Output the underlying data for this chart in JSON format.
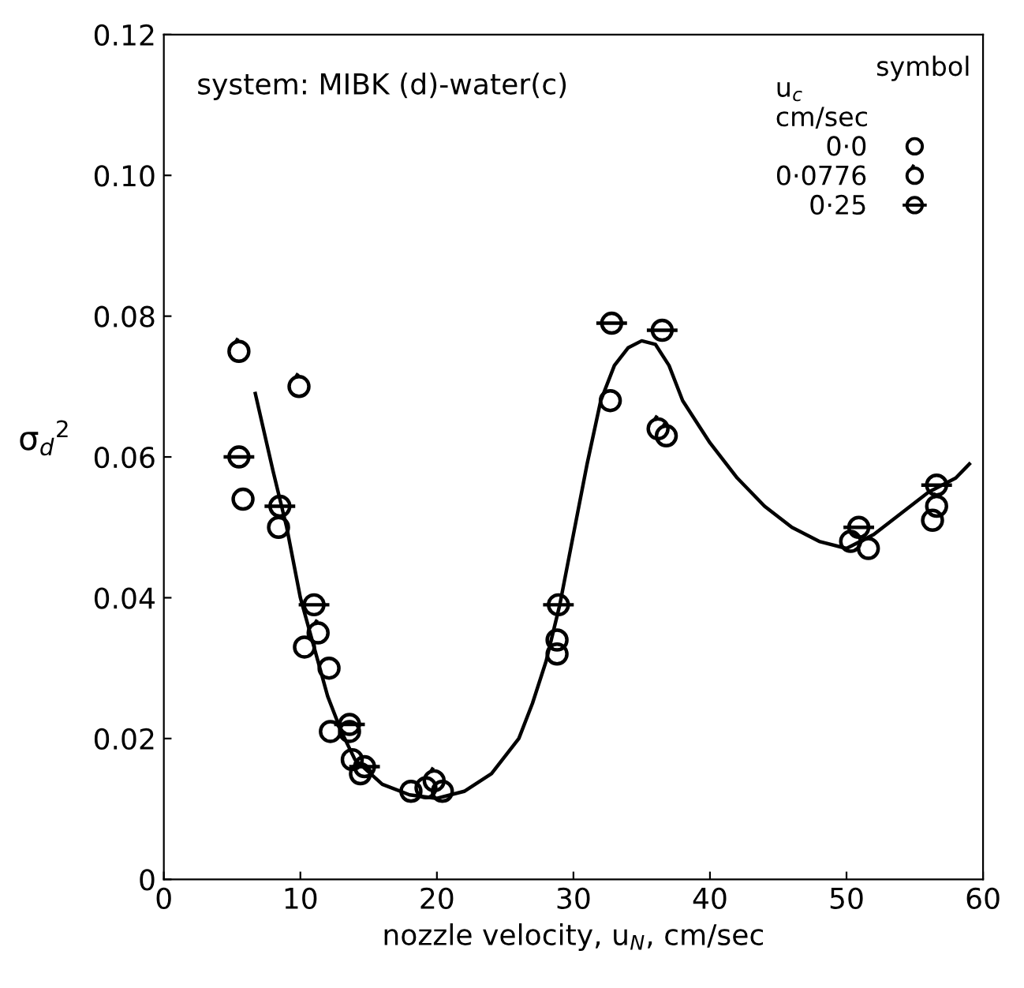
{
  "chart_data": {
    "type": "scatter",
    "title": "system: MIBK (d)-water(c)",
    "xlabel": "nozzle velocity, u$_{N}$, cm/sec",
    "ylabel": "σ$_{d}$$^{2}$",
    "legend_title": "u$_{c}$\ncm/sec",
    "annotations": [
      "symbol"
    ],
    "xlim": [
      0,
      60
    ],
    "xticks": [
      0,
      10,
      20,
      30,
      40,
      50,
      60
    ],
    "ylim": [
      0,
      0.12
    ],
    "yticks": [
      0,
      0.02,
      0.04,
      0.06,
      0.08,
      {
        "value": 0.1,
        "label": "0.10"
      },
      0.12
    ],
    "grid": false,
    "legend": "top right",
    "marker": "circle",
    "series": [
      {
        "name": "0·0",
        "color": "#000000",
        "x": [
          5.8,
          8.4,
          10.3,
          12.1,
          12.2,
          13.6,
          13.8,
          14.4,
          18.1,
          19.2,
          20.4,
          28.8,
          28.8,
          32.7,
          50.3,
          51.6,
          56.3
        ],
        "values": [
          0.054,
          0.05,
          0.033,
          0.03,
          0.021,
          0.021,
          0.017,
          0.015,
          0.0125,
          0.013,
          0.0125,
          0.032,
          0.034,
          0.068,
          0.048,
          0.047,
          0.051
        ]
      },
      {
        "name": "0·0776",
        "color": "#000000",
        "x": [
          5.5,
          9.9,
          11.3,
          19.8,
          36.2,
          36.8,
          56.6
        ],
        "values": [
          0.075,
          0.07,
          0.035,
          0.014,
          0.064,
          0.063,
          0.053
        ]
      },
      {
        "name": "0·25",
        "color": "#000000",
        "x": [
          5.5,
          8.5,
          11.0,
          13.6,
          14.7,
          28.9,
          32.8,
          36.5,
          50.9,
          56.6
        ],
        "values": [
          0.06,
          0.053,
          0.039,
          0.022,
          0.016,
          0.039,
          0.079,
          0.078,
          0.05,
          0.056
        ]
      },
      {
        "type": "line",
        "color": "#000000",
        "marker": "none",
        "line_style": "solid",
        "x": [
          6.7,
          8,
          9,
          10,
          11,
          12,
          13,
          14,
          16,
          18,
          20,
          22,
          24,
          26,
          27,
          28,
          29,
          30,
          31,
          32,
          33,
          34,
          35,
          36,
          37,
          38,
          40,
          42,
          44,
          46,
          48,
          50,
          52,
          54,
          56,
          58,
          59
        ],
        "values": [
          0.069,
          0.058,
          0.05,
          0.04,
          0.033,
          0.026,
          0.021,
          0.017,
          0.0135,
          0.012,
          0.0115,
          0.0125,
          0.015,
          0.02,
          0.025,
          0.031,
          0.039,
          0.049,
          0.059,
          0.068,
          0.073,
          0.0755,
          0.0765,
          0.076,
          0.073,
          0.068,
          0.062,
          0.057,
          0.053,
          0.05,
          0.048,
          0.047,
          0.049,
          0.052,
          0.055,
          0.057,
          0.059
        ]
      }
    ]
  }
}
